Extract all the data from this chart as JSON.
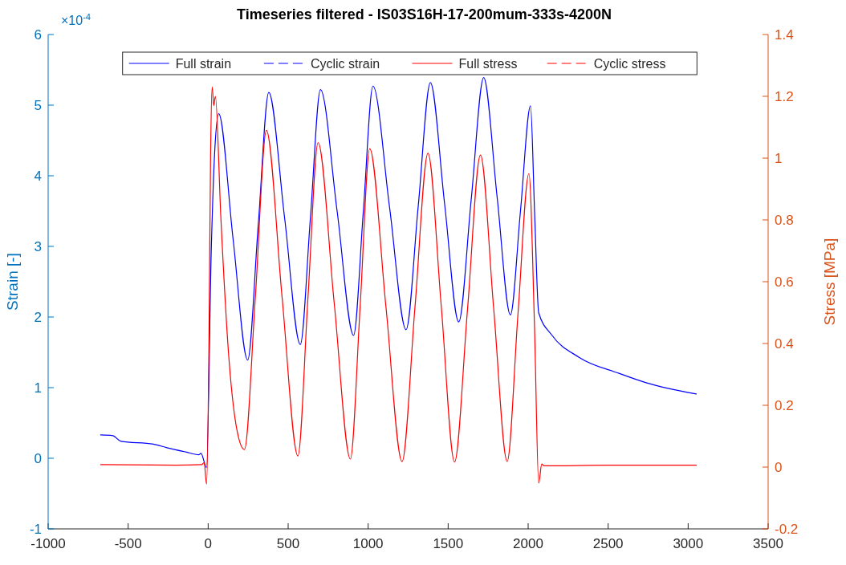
{
  "chart_data": {
    "type": "line",
    "title": "Timeseries filtered - IS03S16H-17-200mum-333s-4200N",
    "ylabel": "Strain [-]",
    "y2label": "Stress [MPa]",
    "annotations": [
      "×10$^{-4}$"
    ],
    "xlim": [
      -1000,
      3500
    ],
    "xticks": [
      -1000,
      -500,
      0,
      500,
      1000,
      1500,
      2000,
      2500,
      3000,
      3500
    ],
    "ylim": [
      -1,
      6
    ],
    "yticks": [
      -1,
      0,
      1,
      2,
      3,
      4,
      5,
      6
    ],
    "y2lim": [
      -0.2,
      1.4
    ],
    "y2ticks": [
      -0.2,
      0,
      0.2,
      0.4,
      0.6,
      0.8,
      1,
      1.2,
      1.4
    ],
    "legend": "top",
    "grid": false,
    "series": [
      {
        "name": "Full strain",
        "color": "#0000ff",
        "line_style": "solid",
        "x": [
          -672,
          -596,
          -545,
          -343,
          -258,
          -141,
          -57,
          -45,
          -10,
          20,
          40,
          66,
          156,
          247,
          313,
          379,
          478,
          576,
          639,
          702,
          806,
          909,
          970,
          1030,
          1134,
          1237,
          1313,
          1389,
          1478,
          1566,
          1644,
          1722,
          1806,
          1889,
          1952,
          2015,
          2040,
          2066,
          2146,
          2318,
          2571,
          2737,
          3051
        ],
        "values": [
          0.33,
          0.32,
          0.24,
          0.2,
          0.15,
          0.09,
          0.05,
          0.07,
          -0.13,
          3.0,
          4.3,
          4.88,
          3.1,
          1.39,
          3.3,
          5.18,
          3.4,
          1.61,
          3.4,
          5.22,
          3.5,
          1.74,
          3.5,
          5.27,
          3.55,
          1.82,
          3.57,
          5.32,
          3.6,
          1.93,
          3.66,
          5.39,
          3.7,
          2.03,
          3.5,
          4.99,
          3.5,
          2.06,
          1.75,
          1.43,
          1.2,
          1.07,
          0.91
        ]
      },
      {
        "name": "Cyclic strain",
        "color": "#0000ff",
        "line_style": "dashed"
      },
      {
        "name": "Full stress",
        "color": "#ff0000",
        "line_style": "solid",
        "axis": "y2",
        "x": [
          -672,
          -200,
          -40,
          -25,
          -10,
          5,
          15,
          25,
          35,
          45,
          80,
          130,
          180,
          227,
          295,
          364,
          462,
          561,
          624,
          687,
          788,
          889,
          950,
          1010,
          1111,
          1212,
          1293,
          1374,
          1457,
          1540,
          1621,
          1702,
          1785,
          1869,
          1937,
          2005,
          2040,
          2066,
          2085,
          2100,
          2500,
          3051
        ],
        "values": [
          0.008,
          0.006,
          0.008,
          0.015,
          -0.055,
          0.4,
          1.0,
          1.23,
          1.17,
          1.2,
          0.8,
          0.35,
          0.12,
          0.057,
          0.55,
          1.09,
          0.55,
          0.036,
          0.55,
          1.05,
          0.53,
          0.026,
          0.52,
          1.03,
          0.52,
          0.018,
          0.52,
          1.016,
          0.52,
          0.016,
          0.51,
          1.01,
          0.51,
          0.018,
          0.5,
          0.95,
          0.45,
          -0.052,
          0.01,
          0.004,
          0.006,
          0.006
        ]
      },
      {
        "name": "Cyclic stress",
        "color": "#ff0000",
        "line_style": "dashed",
        "axis": "y2"
      }
    ]
  }
}
